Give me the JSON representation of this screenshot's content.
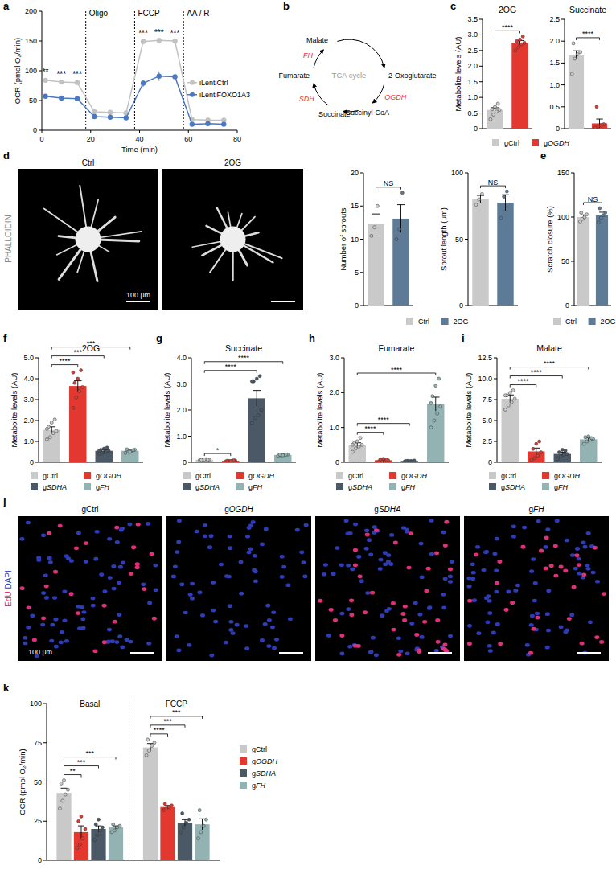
{
  "panels": [
    "a",
    "b",
    "c",
    "d",
    "e",
    "f",
    "g",
    "h",
    "i",
    "j",
    "k"
  ],
  "diagram": {
    "center": "TCA cycle",
    "nodes": [
      {
        "label": "2-Oxoglutarate"
      },
      {
        "label": "Succinyl-CoA"
      },
      {
        "label": "Succinate"
      },
      {
        "label": "Fumarate"
      },
      {
        "label": "Malate"
      }
    ],
    "enzymes": [
      "OGDH",
      "SDH",
      "FH"
    ]
  },
  "images": {
    "d": {
      "label": "PHALLOIDIN",
      "titles": [
        "Ctrl",
        "2OG"
      ],
      "scale": "100 μm"
    },
    "j": {
      "labels": [
        "EdU",
        "DAPI"
      ],
      "titles": [
        "gCtrl",
        "gOGDH",
        "gSDHA",
        "gFH"
      ],
      "scale": "100 μm"
    }
  },
  "chart_data": [
    {
      "type": "line",
      "x_label": "Time (min)",
      "y_label": "OCR (pmol O₂/min)",
      "xlim": [
        0,
        80
      ],
      "xticks": [
        0,
        20,
        40,
        60,
        80
      ],
      "ylim": [
        0,
        200
      ],
      "yticks": [
        0,
        50,
        100,
        150,
        200
      ],
      "legend": "right",
      "marker": "circle",
      "x": [
        1.5,
        8,
        14.5,
        21.5,
        28,
        34.5,
        41.5,
        48,
        54.5,
        61.5,
        68,
        74.5
      ],
      "series": [
        {
          "name": "iLentiCtrl",
          "color": "#c2c2c2",
          "values": [
            84,
            81,
            80,
            31,
            30,
            29,
            149,
            151,
            150,
            18,
            17,
            17
          ],
          "errors": [
            2,
            2,
            2,
            1,
            1,
            1,
            2,
            2,
            2,
            1,
            1,
            1
          ]
        },
        {
          "name": "iLentiFOXO1A3",
          "color": "#4a78c2",
          "values": [
            57,
            54,
            53,
            23,
            22,
            21,
            79,
            91,
            90,
            10,
            11,
            10
          ],
          "errors": [
            2,
            1,
            1,
            1,
            1,
            1,
            6,
            8,
            7,
            1,
            1,
            1
          ]
        }
      ],
      "phases": [
        {
          "label": "Oligo",
          "x": 18
        },
        {
          "label": "FCCP",
          "x": 38
        },
        {
          "label": "AA / R",
          "x": 58
        }
      ],
      "annotations": [
        {
          "text": "**",
          "x": 1.5
        },
        {
          "text": "***",
          "x": 8
        },
        {
          "text": "***",
          "x": 14.5
        },
        {
          "text": "***",
          "x": 41.5
        },
        {
          "text": "***",
          "x": 48
        },
        {
          "text": "***",
          "x": 54.5
        }
      ]
    },
    {
      "type": "bar",
      "title": "2OG",
      "y_label": "Metabolite levels (AU)",
      "ylim": [
        0,
        3.5
      ],
      "yticks": [
        0,
        0.5,
        {
          "value": 1,
          "label": "1.0"
        },
        1.5,
        {
          "value": 2,
          "label": "2.0"
        },
        2.5,
        {
          "value": 3,
          "label": "3.0"
        },
        3.5
      ],
      "legend": "bottom",
      "categories": [
        "gCtrl",
        "gOGDH"
      ],
      "colors": [
        "#c9c9c9",
        "#e2382f"
      ],
      "values": [
        0.6,
        2.75
      ],
      "errors": [
        0.07,
        0.07
      ],
      "points": [
        [
          0.3,
          0.45,
          0.55,
          0.6,
          0.62,
          0.7,
          0.8
        ],
        [
          2.5,
          2.6,
          2.7,
          2.75,
          2.8,
          2.85,
          2.95
        ]
      ],
      "annotations": [
        {
          "text": "****",
          "pair": [
            0,
            1
          ]
        }
      ]
    },
    {
      "type": "bar",
      "title": "Succinate",
      "ylim": [
        0,
        2.5
      ],
      "yticks": [
        0,
        0.5,
        {
          "value": 1,
          "label": "1.0"
        },
        1.5,
        {
          "value": 2,
          "label": "2.0"
        },
        2.5
      ],
      "colors": [
        "#c9c9c9",
        "#e2382f"
      ],
      "values": [
        1.68,
        0.12
      ],
      "errors": [
        0.1,
        0.1
      ],
      "points": [
        [
          1.25,
          1.6,
          1.7,
          1.75,
          1.95
        ],
        [
          0.02,
          0.05,
          0.08,
          0.1,
          0.5
        ]
      ],
      "annotations": [
        {
          "text": "****",
          "pair": [
            0,
            1
          ]
        }
      ]
    },
    {
      "type": "bar",
      "y_label": "Number of sprouts",
      "ylim": [
        0,
        20
      ],
      "yticks": [
        0,
        5,
        10,
        15,
        20
      ],
      "legend": "bottom",
      "categories": [
        "Ctrl",
        "2OG"
      ],
      "colors": [
        "#c9c9c9",
        "#5d7b96"
      ],
      "values": [
        12.3,
        13.1
      ],
      "errors": [
        1.5,
        2.1
      ],
      "points": [
        [
          10.5,
          11.8,
          15
        ],
        [
          10,
          11.5,
          17
        ]
      ],
      "annotations": [
        {
          "text": "NS",
          "pair": [
            0,
            1
          ]
        }
      ]
    },
    {
      "type": "bar",
      "y_label": "Sprout length (μm)",
      "ylim": [
        0,
        100
      ],
      "yticks": [
        0,
        50,
        100
      ],
      "colors": [
        "#c9c9c9",
        "#5d7b96"
      ],
      "values": [
        80,
        77.5
      ],
      "errors": [
        3,
        6
      ],
      "points": [
        [
          76,
          80,
          84
        ],
        [
          66,
          82,
          86
        ]
      ],
      "annotations": [
        {
          "text": "NS",
          "pair": [
            0,
            1
          ]
        }
      ]
    },
    {
      "type": "bar",
      "y_label": "Scratch closure (%)",
      "ylim": [
        0,
        150
      ],
      "yticks": [
        0,
        50,
        100,
        150
      ],
      "legend": "bottom",
      "categories": [
        "Ctrl",
        "2OG"
      ],
      "colors": [
        "#c9c9c9",
        "#5d7b96"
      ],
      "values": [
        100,
        102
      ],
      "errors": [
        2.5,
        3.5
      ],
      "points": [
        [
          95,
          98,
          100,
          103,
          105
        ],
        [
          94,
          99,
          102,
          105,
          110
        ]
      ],
      "annotations": [
        {
          "text": "NS",
          "pair": [
            0,
            1
          ]
        }
      ]
    },
    {
      "type": "bar",
      "title": "2OG",
      "y_label": "Metabolite levels (AU)",
      "ylim": [
        0,
        5
      ],
      "yticks": [
        0,
        {
          "value": 1,
          "label": "1.0"
        },
        {
          "value": 2,
          "label": "2.0"
        },
        {
          "value": 3,
          "label": "3.0"
        },
        {
          "value": 4,
          "label": "4.0"
        },
        {
          "value": 5,
          "label": "5.0"
        }
      ],
      "legend": "bottom",
      "categories": [
        "gCtrl",
        "gOGDH",
        "gSDHA",
        "gFH"
      ],
      "colors": [
        "#c9c9c9",
        "#e2382f",
        "#4b5865",
        "#93b3b2"
      ],
      "values": [
        1.55,
        3.65,
        0.55,
        0.55
      ],
      "errors": [
        0.15,
        0.25,
        0.05,
        0.03
      ],
      "points": [
        [
          1.1,
          1.2,
          1.4,
          1.5,
          1.7,
          1.9,
          2.05,
          1.6
        ],
        [
          2.6,
          3.1,
          3.4,
          3.6,
          3.8,
          4.0,
          4.4,
          4.3
        ],
        [
          0.4,
          0.45,
          0.5,
          0.55,
          0.6,
          0.65,
          0.7,
          0.55
        ],
        [
          0.45,
          0.5,
          0.55,
          0.6,
          0.62,
          0.5,
          0.58
        ]
      ],
      "annotations": [
        {
          "text": "****",
          "pair": [
            0,
            1
          ]
        },
        {
          "text": "***",
          "pair": [
            0,
            2
          ]
        },
        {
          "text": "***",
          "pair": [
            0,
            3
          ]
        }
      ]
    },
    {
      "type": "bar",
      "title": "Succinate",
      "y_label": "Metabolite levels (AU)",
      "ylim": [
        0,
        4
      ],
      "yticks": [
        0,
        {
          "value": 1,
          "label": "1.0"
        },
        {
          "value": 2,
          "label": "2.0"
        },
        {
          "value": 3,
          "label": "3.0"
        },
        {
          "value": 4,
          "label": "4.0"
        }
      ],
      "legend": "bottom",
      "categories": [
        "gCtrl",
        "gOGDH",
        "gSDHA",
        "gFH"
      ],
      "colors": [
        "#c9c9c9",
        "#e2382f",
        "#4b5865",
        "#93b3b2"
      ],
      "values": [
        0.1,
        0.06,
        2.45,
        0.28
      ],
      "errors": [
        0.01,
        0.01,
        0.3,
        0.02
      ],
      "points": [
        [
          0.08,
          0.1,
          0.12,
          0.1,
          0.09,
          0.11,
          0.1
        ],
        [
          0.04,
          0.05,
          0.06,
          0.07,
          0.06,
          0.05,
          0.08
        ],
        [
          1.5,
          1.7,
          1.8,
          2.0,
          3.1,
          3.2,
          3.3,
          3.1
        ],
        [
          0.25,
          0.27,
          0.28,
          0.3,
          0.29,
          0.27,
          0.3
        ]
      ],
      "annotations": [
        {
          "text": "*",
          "pair": [
            0,
            1
          ]
        },
        {
          "text": "****",
          "pair": [
            0,
            2
          ]
        },
        {
          "text": "****",
          "pair": [
            0,
            3
          ]
        }
      ]
    },
    {
      "type": "bar",
      "title": "Fumarate",
      "y_label": "Metabolite levels (AU)",
      "ylim": [
        0,
        3
      ],
      "yticks": [
        0,
        {
          "value": 1,
          "label": "1.0"
        },
        {
          "value": 2,
          "label": "2.0"
        },
        {
          "value": 3,
          "label": "3.0"
        }
      ],
      "legend": "bottom",
      "categories": [
        "gCtrl",
        "gOGDH",
        "gSDHA",
        "gFH"
      ],
      "colors": [
        "#c9c9c9",
        "#e2382f",
        "#4b5865",
        "#93b3b2"
      ],
      "values": [
        0.5,
        0.06,
        0.04,
        1.67
      ],
      "errors": [
        0.06,
        0.02,
        0.005,
        0.2
      ],
      "points": [
        [
          0.3,
          0.4,
          0.45,
          0.5,
          0.55,
          0.6,
          0.7,
          0.5
        ],
        [
          0.02,
          0.04,
          0.05,
          0.06,
          0.08,
          0.1,
          0.07
        ],
        [
          0.03,
          0.04,
          0.04,
          0.05,
          0.04,
          0.03
        ],
        [
          1.0,
          1.2,
          1.4,
          1.6,
          1.9,
          2.2,
          2.4,
          1.7
        ]
      ],
      "annotations": [
        {
          "text": "****",
          "pair": [
            0,
            1
          ]
        },
        {
          "text": "****",
          "pair": [
            0,
            2
          ]
        },
        {
          "text": "****",
          "pair": [
            0,
            3
          ]
        }
      ]
    },
    {
      "type": "bar",
      "title": "Malate",
      "y_label": "Metabolite levels (AU)",
      "ylim": [
        0,
        12.5
      ],
      "yticks": [
        0,
        2.5,
        {
          "value": 5,
          "label": "5.0"
        },
        7.5,
        {
          "value": 10,
          "label": "10.0"
        },
        12.5
      ],
      "legend": "bottom",
      "categories": [
        "gCtrl",
        "gOGDH",
        "gSDHA",
        "gFH"
      ],
      "colors": [
        "#c9c9c9",
        "#e2382f",
        "#4b5865",
        "#93b3b2"
      ],
      "values": [
        7.6,
        1.3,
        1.0,
        2.75
      ],
      "errors": [
        0.45,
        0.4,
        0.2,
        0.15
      ],
      "points": [
        [
          6.3,
          6.8,
          7.2,
          7.6,
          8.0,
          8.3,
          8.6,
          8.0
        ],
        [
          0.3,
          0.5,
          0.8,
          1.2,
          1.6,
          2.2,
          2.5
        ],
        [
          0.4,
          0.7,
          0.9,
          1.0,
          1.2,
          1.5,
          1.4
        ],
        [
          2.2,
          2.5,
          2.7,
          2.8,
          3.0,
          3.1,
          2.9
        ]
      ],
      "annotations": [
        {
          "text": "****",
          "pair": [
            0,
            1
          ]
        },
        {
          "text": "****",
          "pair": [
            0,
            2
          ]
        },
        {
          "text": "****",
          "pair": [
            0,
            3
          ]
        }
      ]
    },
    {
      "type": "bar",
      "y_label": "OCR (pmol O₂/min)",
      "ylim": [
        0,
        100
      ],
      "yticks": [
        0,
        25,
        50,
        75,
        100
      ],
      "legend": "right",
      "categories": [
        "Basal",
        "FCCP"
      ],
      "series": [
        {
          "name": "gCtrl",
          "color": "#c9c9c9",
          "values": [
            43,
            72
          ],
          "errors": [
            3,
            2.5
          ],
          "points": [
            [
              33,
              38,
              42,
              45,
              49,
              51
            ],
            [
              67,
              70,
              73,
              75,
              77
            ]
          ]
        },
        {
          "name": "gOGDH",
          "color": "#e2382f",
          "values": [
            18,
            34
          ],
          "errors": [
            4,
            1
          ],
          "points": [
            [
              8,
              10,
              14,
              20,
              25,
              28
            ],
            [
              32,
              33,
              34,
              35,
              36
            ]
          ]
        },
        {
          "name": "gSDHA",
          "color": "#4b5865",
          "values": [
            20,
            24
          ],
          "errors": [
            2,
            2
          ],
          "points": [
            [
              13,
              16,
              19,
              21,
              23,
              26
            ],
            [
              18,
              21,
              24,
              26,
              30
            ]
          ]
        },
        {
          "name": "gFH",
          "color": "#93b3b2",
          "values": [
            21,
            23
          ],
          "errors": [
            1,
            3.5
          ],
          "points": [
            [
              18,
              19,
              21,
              22,
              23
            ],
            [
              14,
              18,
              22,
              26,
              32
            ]
          ]
        }
      ],
      "annotations": [
        {
          "text": "**",
          "category": 0,
          "pair": [
            0,
            1
          ]
        },
        {
          "text": "***",
          "category": 0,
          "pair": [
            0,
            2
          ]
        },
        {
          "text": "***",
          "category": 0,
          "pair": [
            0,
            3
          ]
        },
        {
          "text": "****",
          "category": 1,
          "pair": [
            0,
            1
          ]
        },
        {
          "text": "***",
          "category": 1,
          "pair": [
            0,
            2
          ]
        },
        {
          "text": "***",
          "category": 1,
          "pair": [
            0,
            3
          ]
        }
      ]
    }
  ]
}
